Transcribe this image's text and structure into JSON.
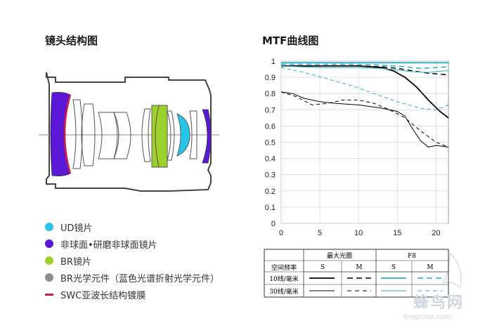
{
  "lens_diagram": {
    "title": "镜头结构图",
    "legend": [
      {
        "label": "UD镜片",
        "color": "#29c4ea",
        "marker": "dot"
      },
      {
        "label": "非球面•研磨非球面镜片",
        "color": "#5b18d6",
        "marker": "dot"
      },
      {
        "label": "BR镜片",
        "color": "#9bd12d",
        "marker": "dot"
      },
      {
        "label": "BR光学元件（蓝色光谱折射光学元件）",
        "color": "#8e8e8e",
        "marker": "dot"
      },
      {
        "label": "SWC亚波长结构镀膜",
        "color": "#d0203d",
        "marker": "dash"
      }
    ]
  },
  "mtf": {
    "title": "MTF曲线图",
    "table": {
      "header_col0": "空间频率",
      "group_max": "最大光圈",
      "group_f8": "F8",
      "sub_labels": [
        "S",
        "M",
        "S",
        "M"
      ],
      "rows": [
        "10线/毫米",
        "30线/毫米"
      ]
    }
  },
  "watermark": {
    "text": "蜂鸟网",
    "sub": "fengniao.com"
  },
  "chart_data": {
    "type": "line",
    "title": "MTF曲线图",
    "xlim": [
      0,
      21.6
    ],
    "ylim": [
      0,
      1
    ],
    "x_ticks": [
      "0",
      "5",
      "10",
      "15",
      "20"
    ],
    "x_tick_values": [
      0,
      5,
      10,
      15,
      20
    ],
    "y_ticks": [
      "0",
      "0.1",
      "0.2",
      "0.3",
      "0.4",
      "0.5",
      "0.6",
      "0.7",
      "0.8",
      "0.9",
      "1"
    ],
    "y_tick_values": [
      0,
      0.1,
      0.2,
      0.3,
      0.4,
      0.5,
      0.6,
      0.7,
      0.8,
      0.9,
      1
    ],
    "grid": true,
    "series": [
      {
        "color": "#000000",
        "dash": "solid",
        "width": 1.8,
        "x": [
          0,
          5,
          10,
          13,
          14.5,
          16,
          17.5,
          19,
          20.5,
          21.6
        ],
        "y": [
          0.97,
          0.97,
          0.97,
          0.96,
          0.94,
          0.9,
          0.84,
          0.76,
          0.69,
          0.65
        ]
      },
      {
        "color": "#000000",
        "dash": "dash",
        "width": 1.5,
        "x": [
          0,
          5,
          10,
          13,
          15,
          17,
          19,
          21.6
        ],
        "y": [
          0.97,
          0.97,
          0.97,
          0.965,
          0.955,
          0.94,
          0.925,
          0.915
        ]
      },
      {
        "color": "#2aa9c6",
        "dash": "solid",
        "width": 1.8,
        "x": [
          0,
          5,
          10,
          15,
          20,
          21.6
        ],
        "y": [
          0.99,
          0.99,
          0.99,
          0.99,
          0.99,
          0.99
        ]
      },
      {
        "color": "#2aa9c6",
        "dash": "dash",
        "width": 1.5,
        "x": [
          0,
          5,
          10,
          13,
          16,
          18,
          20,
          21.6
        ],
        "y": [
          0.98,
          0.98,
          0.98,
          0.975,
          0.965,
          0.955,
          0.96,
          0.965
        ]
      },
      {
        "color": "#000000",
        "dash": "solid",
        "width": 1,
        "x": [
          0,
          1.5,
          3,
          5,
          7,
          10,
          13,
          15,
          16,
          17,
          18,
          19,
          20,
          21.6
        ],
        "y": [
          0.81,
          0.8,
          0.77,
          0.75,
          0.74,
          0.73,
          0.71,
          0.69,
          0.66,
          0.58,
          0.51,
          0.47,
          0.48,
          0.47
        ]
      },
      {
        "color": "#000000",
        "dash": "dash",
        "width": 1,
        "x": [
          0,
          2,
          4,
          6,
          8,
          10,
          12,
          14,
          16,
          18,
          20,
          21.6
        ],
        "y": [
          0.81,
          0.78,
          0.73,
          0.74,
          0.76,
          0.76,
          0.74,
          0.7,
          0.65,
          0.57,
          0.5,
          0.47
        ]
      },
      {
        "color": "#2aa9c6",
        "dash": "solid",
        "width": 1,
        "x": [
          0,
          5,
          10,
          13,
          15,
          17,
          19,
          20,
          21,
          21.6
        ],
        "y": [
          0.97,
          0.96,
          0.96,
          0.955,
          0.945,
          0.935,
          0.93,
          0.935,
          0.94,
          0.94
        ]
      },
      {
        "color": "#2aa9c6",
        "dash": "dash",
        "width": 1,
        "x": [
          0,
          3,
          6,
          9,
          12,
          15,
          18,
          20,
          21.6
        ],
        "y": [
          0.96,
          0.93,
          0.89,
          0.85,
          0.8,
          0.75,
          0.71,
          0.7,
          0.73
        ]
      }
    ]
  }
}
